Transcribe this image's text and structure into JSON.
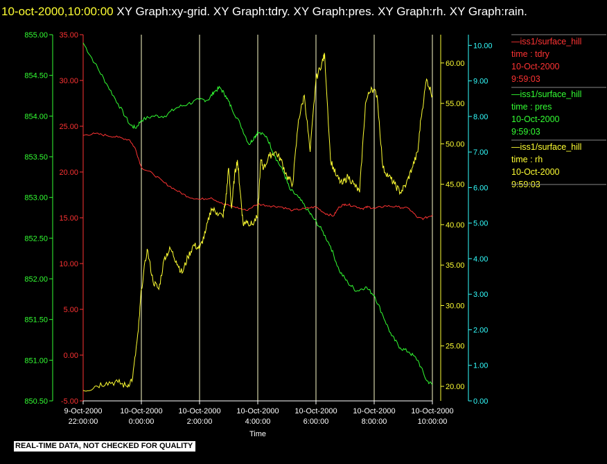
{
  "header": {
    "timestamp": "10-oct-2000,10:00:00",
    "graph_titles": [
      "XY Graph:xy-grid.",
      "XY Graph:tdry.",
      "XY Graph:pres.",
      "XY Graph:rh.",
      "XY Graph:",
      "rain."
    ]
  },
  "footer": {
    "notice": "REAL-TIME DATA, NOT CHECKED FOR QUALITY"
  },
  "colors": {
    "tdry": "#ff3333",
    "pres": "#33ff33",
    "rh": "#ffff33",
    "rain": "#33ffff",
    "grid": "#ffffcc",
    "background": "#000000"
  },
  "chart_data": {
    "type": "line",
    "xlabel": "Time",
    "x_ticks": [
      {
        "date": "9-Oct-2000",
        "time": "22:00:00"
      },
      {
        "date": "10-Oct-2000",
        "time": "0:00:00"
      },
      {
        "date": "10-Oct-2000",
        "time": "2:00:00"
      },
      {
        "date": "10-Oct-2000",
        "time": "4:00:00"
      },
      {
        "date": "10-Oct-2000",
        "time": "6:00:00"
      },
      {
        "date": "10-Oct-2000",
        "time": "8:00:00"
      },
      {
        "date": "10-Oct-2000",
        "time": "10:00:00"
      }
    ],
    "xlim_hours": [
      -2,
      10
    ],
    "grid": true,
    "axes": {
      "pres": {
        "ticks": [
          "850.50",
          "851.00",
          "851.50",
          "852.00",
          "852.50",
          "853.00",
          "853.50",
          "854.00",
          "854.50",
          "855.00"
        ],
        "ylim": [
          850.5,
          855.0
        ]
      },
      "tdry": {
        "ticks": [
          "-5.00",
          "0.00",
          "5.00",
          "10.00",
          "15.00",
          "20.00",
          "25.00",
          "30.00",
          "35.00"
        ],
        "ylim": [
          -5,
          35
        ]
      },
      "rh": {
        "ticks": [
          "20.00",
          "25.00",
          "30.00",
          "35.00",
          "40.00",
          "45.00",
          "50.00",
          "55.00",
          "60.00"
        ],
        "ylim": [
          18.2,
          63.5
        ]
      },
      "rain": {
        "ticks": [
          "0.00",
          "1.00",
          "2.00",
          "3.00",
          "4.00",
          "5.00",
          "6.00",
          "7.00",
          "8.00",
          "9.00",
          "10.00"
        ],
        "ylim": [
          0,
          10.3
        ]
      }
    },
    "legend": {
      "placement": "right",
      "entries": [
        {
          "line1": "—iss1/surface_hill",
          "line2": "time : tdry",
          "line3": "10-Oct-2000",
          "line4": "9:59:03",
          "color": "#ff3333"
        },
        {
          "line1": "—iss1/surface_hill",
          "line2": "time : pres",
          "line3": "10-Oct-2000",
          "line4": "9:59:03",
          "color": "#33ff33"
        },
        {
          "line1": "—iss1/surface_hill",
          "line2": "time : rh",
          "line3": "10-Oct-2000",
          "line4": "9:59:03",
          "color": "#ffff33"
        }
      ]
    },
    "series": [
      {
        "key": "pres",
        "x": [
          -2.0,
          -1.6,
          -1.2,
          -0.8,
          -0.4,
          -0.2,
          0.0,
          0.4,
          0.8,
          1.2,
          1.6,
          2.0,
          2.3,
          2.5,
          2.7,
          2.9,
          3.1,
          3.4,
          3.7,
          3.9,
          4.0,
          4.3,
          4.6,
          4.9,
          5.1,
          5.4,
          5.7,
          5.9,
          6.2,
          6.5,
          6.8,
          7.1,
          7.4,
          7.7,
          8.0,
          8.3,
          8.6,
          8.9,
          9.2,
          9.5,
          9.8,
          10.0
        ],
        "values": [
          854.9,
          854.65,
          854.4,
          854.15,
          853.9,
          853.85,
          853.95,
          854.0,
          854.0,
          854.1,
          854.15,
          854.2,
          854.2,
          854.3,
          854.35,
          854.25,
          854.1,
          853.9,
          853.65,
          853.75,
          853.8,
          853.75,
          853.5,
          853.3,
          853.1,
          853.0,
          852.85,
          852.75,
          852.6,
          852.4,
          852.1,
          851.95,
          851.85,
          851.9,
          851.8,
          851.55,
          851.3,
          851.15,
          851.1,
          851.0,
          850.75,
          850.7
        ]
      },
      {
        "key": "tdry",
        "x": [
          -2.0,
          -1.6,
          -1.2,
          -0.8,
          -0.4,
          -0.2,
          0.0,
          0.4,
          0.8,
          1.2,
          1.6,
          2.0,
          2.4,
          2.8,
          3.2,
          3.6,
          4.0,
          4.4,
          4.8,
          5.2,
          5.6,
          6.0,
          6.3,
          6.6,
          6.8,
          7.0,
          7.3,
          7.6,
          7.8,
          8.0,
          8.4,
          8.8,
          9.2,
          9.5,
          9.7,
          10.0
        ],
        "values": [
          24.0,
          24.2,
          24.0,
          23.8,
          23.5,
          22.5,
          20.5,
          19.8,
          18.8,
          18.0,
          17.3,
          17.0,
          17.2,
          16.5,
          16.2,
          15.8,
          16.5,
          16.3,
          16.2,
          15.8,
          16.0,
          16.2,
          15.5,
          15.2,
          16.2,
          16.5,
          16.3,
          16.0,
          16.2,
          16.0,
          16.3,
          16.2,
          16.0,
          15.0,
          14.9,
          15.3
        ]
      },
      {
        "key": "rh",
        "x": [
          -2.0,
          -1.6,
          -1.2,
          -0.8,
          -0.5,
          -0.3,
          -0.1,
          0.0,
          0.2,
          0.4,
          0.6,
          0.8,
          1.0,
          1.2,
          1.4,
          1.6,
          1.8,
          2.0,
          2.2,
          2.4,
          2.6,
          2.8,
          2.9,
          3.0,
          3.1,
          3.2,
          3.3,
          3.4,
          3.5,
          3.6,
          3.8,
          4.0,
          4.1,
          4.2,
          4.4,
          4.6,
          4.8,
          5.0,
          5.2,
          5.4,
          5.6,
          5.8,
          6.0,
          6.2,
          6.3,
          6.5,
          6.7,
          6.9,
          7.1,
          7.3,
          7.5,
          7.7,
          7.9,
          8.1,
          8.3,
          8.5,
          8.7,
          8.9,
          9.1,
          9.3,
          9.5,
          9.6,
          9.8,
          10.0
        ],
        "values": [
          19.5,
          20.0,
          20.5,
          20.5,
          20.0,
          21.0,
          27.0,
          32.0,
          37.0,
          33.0,
          32.0,
          36.0,
          37.0,
          35.5,
          34.0,
          36.0,
          37.5,
          37.0,
          39.0,
          42.0,
          41.5,
          41.0,
          43.0,
          47.0,
          42.0,
          46.0,
          48.0,
          44.0,
          40.0,
          40.5,
          40.0,
          41.0,
          48.0,
          47.0,
          48.5,
          49.0,
          48.0,
          46.0,
          45.0,
          53.0,
          56.0,
          49.0,
          58.0,
          60.0,
          61.0,
          48.0,
          46.0,
          45.0,
          46.0,
          45.0,
          44.0,
          55.0,
          57.0,
          56.0,
          47.0,
          46.0,
          45.0,
          44.0,
          45.0,
          47.0,
          49.0,
          53.0,
          58.0,
          56.0
        ]
      }
    ]
  }
}
